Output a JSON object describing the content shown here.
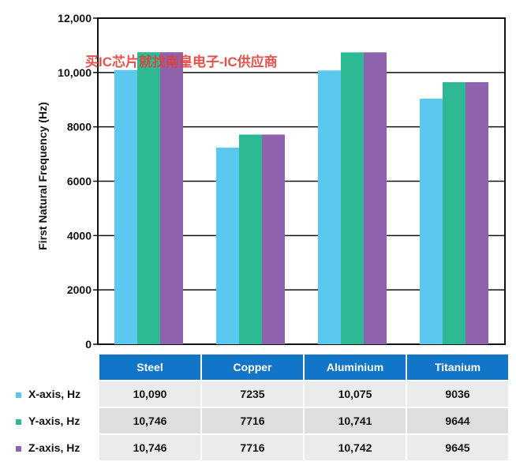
{
  "chart_data": {
    "type": "bar",
    "ylabel": "First Natural Frequency (Hz)",
    "ylim": [
      0,
      12000
    ],
    "yticks": [
      "0",
      "2000",
      "4000",
      "6000",
      "8000",
      "10,000",
      "12,000"
    ],
    "grid": true,
    "categories": [
      "Steel",
      "Copper",
      "Aluminium",
      "Titanium"
    ],
    "series": [
      {
        "name": "X-axis, Hz",
        "color": "#5bc8f0",
        "values": [
          10090,
          7235,
          10075,
          9036
        ],
        "labels": [
          "10,090",
          "7235",
          "10,075",
          "9036"
        ]
      },
      {
        "name": "Y-axis, Hz",
        "color": "#2cb993",
        "values": [
          10746,
          7716,
          10741,
          9644
        ],
        "labels": [
          "10,746",
          "7716",
          "10,741",
          "9644"
        ]
      },
      {
        "name": "Z-axis, Hz",
        "color": "#8e62ac",
        "values": [
          10746,
          7716,
          10742,
          9645
        ],
        "labels": [
          "10,746",
          "7716",
          "10,742",
          "9645"
        ]
      }
    ]
  },
  "watermark": "买IC芯片就找南皇电子-IC供应商",
  "colors": {
    "header": "#1276c8",
    "frame": "#111111",
    "grid": "#111111"
  }
}
